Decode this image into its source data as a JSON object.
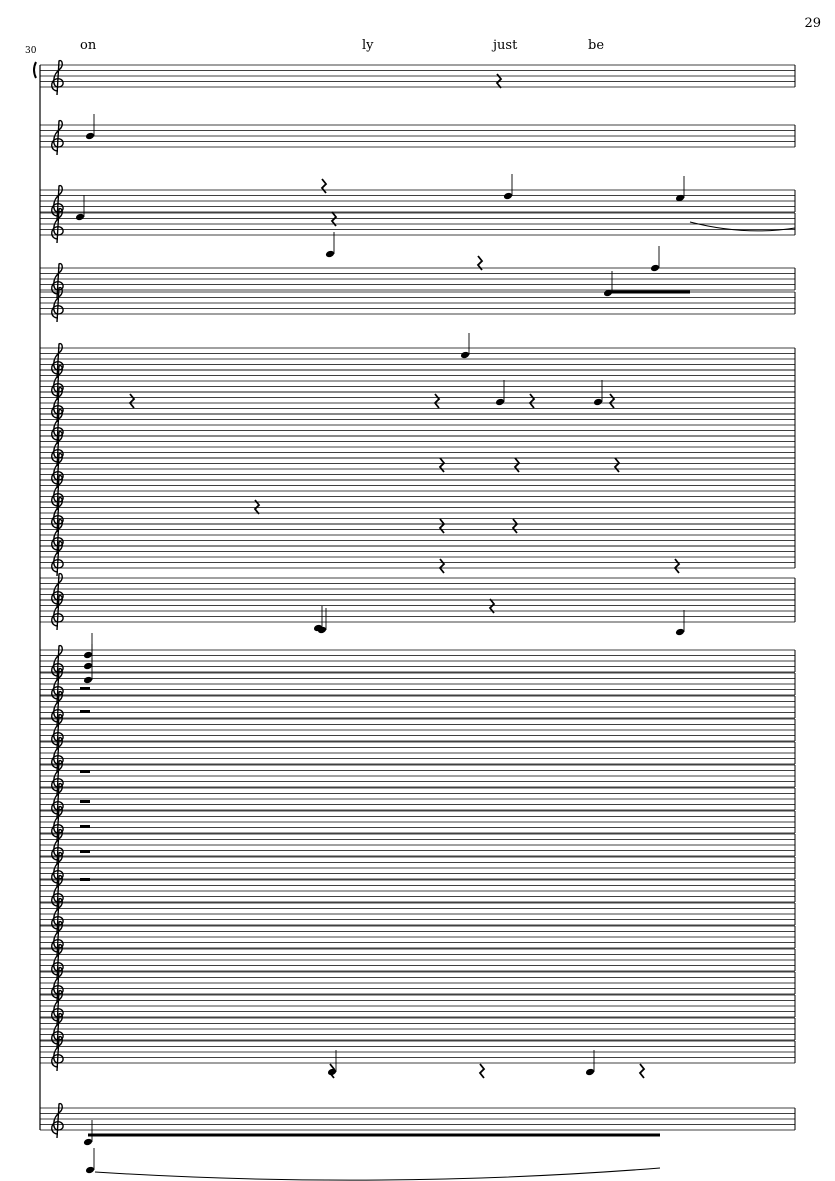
{
  "page_number": "29",
  "measure_number": "30",
  "lyrics": [
    "on",
    "ly",
    "just",
    "be"
  ],
  "clef": "treble",
  "ink_color": "#000000"
}
